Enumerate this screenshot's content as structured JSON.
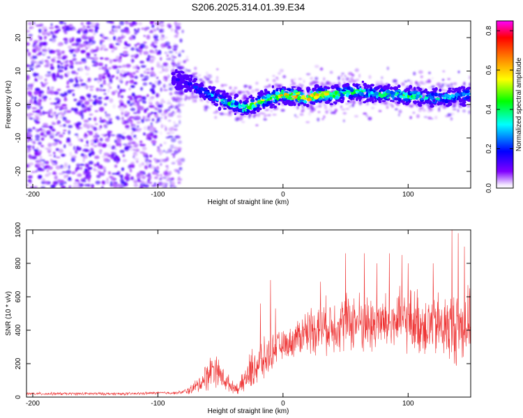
{
  "title": "S206.2025.314.01.39.E34",
  "chart_data": [
    {
      "type": "heatmap",
      "xlabel": "Height of straight line (km)",
      "ylabel": "Frequency (Hz)",
      "xlim": [
        -205,
        150
      ],
      "ylim": [
        -25,
        25
      ],
      "x_ticks": [
        -200,
        -100,
        0,
        100
      ],
      "y_ticks": [
        -20,
        -10,
        0,
        10,
        20
      ],
      "colorbar": {
        "label": "Normalized spectral amplitude",
        "range": [
          0.0,
          0.85
        ],
        "ticks": [
          "0.0",
          "0.2",
          "0.4",
          "0.6",
          "0.8"
        ],
        "colors": [
          "#ffffff",
          "#8000ff",
          "#0000ff",
          "#00ffff",
          "#00ff00",
          "#ffff00",
          "#ff8000",
          "#ff0000",
          "#ff00ff"
        ]
      },
      "ridge": {
        "x": [
          -88,
          -80,
          -70,
          -60,
          -50,
          -40,
          -30,
          -20,
          -10,
          0,
          10,
          20,
          30,
          40,
          50,
          60,
          70,
          80,
          90,
          100,
          110,
          120,
          130,
          140,
          150
        ],
        "freq": [
          8,
          7,
          5,
          3,
          1.5,
          0,
          -1,
          0.5,
          2,
          3,
          2.5,
          2,
          3,
          3,
          3.5,
          4,
          3.5,
          3,
          3,
          2.5,
          2.5,
          2,
          2,
          2.5,
          3
        ],
        "peak_amplitude": [
          0.15,
          0.2,
          0.25,
          0.3,
          0.4,
          0.45,
          0.5,
          0.55,
          0.6,
          0.65,
          0.75,
          0.75,
          0.7,
          0.55,
          0.5,
          0.45,
          0.45,
          0.45,
          0.5,
          0.5,
          0.45,
          0.4,
          0.4,
          0.35,
          0.35
        ]
      },
      "noise_region": {
        "x_range": [
          -205,
          -88
        ],
        "freq_range": [
          -25,
          25
        ],
        "amplitude": [
          0.02,
          0.15
        ]
      }
    },
    {
      "type": "line",
      "xlabel": "Height of straight line (km)",
      "ylabel": "SNR (10 * v/v)",
      "xlim": [
        -205,
        150
      ],
      "ylim": [
        0,
        1000
      ],
      "x_ticks": [
        -200,
        -100,
        0,
        100
      ],
      "y_ticks": [
        0,
        200,
        400,
        600,
        800,
        1000
      ],
      "series": [
        {
          "name": "SNR",
          "color": "#ee3333",
          "x": [
            -205,
            -180,
            -150,
            -120,
            -100,
            -85,
            -80,
            -75,
            -70,
            -65,
            -60,
            -55,
            -50,
            -45,
            -40,
            -35,
            -30,
            -25,
            -20,
            -15,
            -10,
            -5,
            0,
            5,
            10,
            15,
            20,
            30,
            40,
            50,
            60,
            70,
            80,
            90,
            100,
            110,
            120,
            130,
            135,
            140,
            145,
            150
          ],
          "baseline": [
            20,
            20,
            20,
            20,
            25,
            25,
            30,
            40,
            60,
            90,
            140,
            180,
            130,
            90,
            60,
            50,
            110,
            160,
            200,
            220,
            260,
            300,
            310,
            320,
            350,
            380,
            400,
            420,
            430,
            450,
            450,
            430,
            440,
            450,
            460,
            440,
            430,
            420,
            410,
            420,
            430,
            440
          ],
          "spread": [
            10,
            10,
            10,
            10,
            10,
            10,
            15,
            30,
            50,
            70,
            120,
            130,
            90,
            70,
            40,
            40,
            100,
            150,
            180,
            150,
            120,
            110,
            100,
            100,
            130,
            150,
            170,
            190,
            200,
            210,
            220,
            220,
            210,
            220,
            230,
            240,
            240,
            250,
            260,
            270,
            260,
            250
          ],
          "peaks": [
            [
              -18,
              560
            ],
            [
              -10,
              700
            ],
            [
              -6,
              530
            ],
            [
              10,
              400
            ],
            [
              30,
              690
            ],
            [
              50,
              860
            ],
            [
              65,
              860
            ],
            [
              75,
              800
            ],
            [
              85,
              860
            ],
            [
              95,
              850
            ],
            [
              100,
              800
            ],
            [
              120,
              800
            ],
            [
              135,
              1000
            ],
            [
              140,
              980
            ],
            [
              145,
              900
            ]
          ]
        }
      ]
    }
  ]
}
